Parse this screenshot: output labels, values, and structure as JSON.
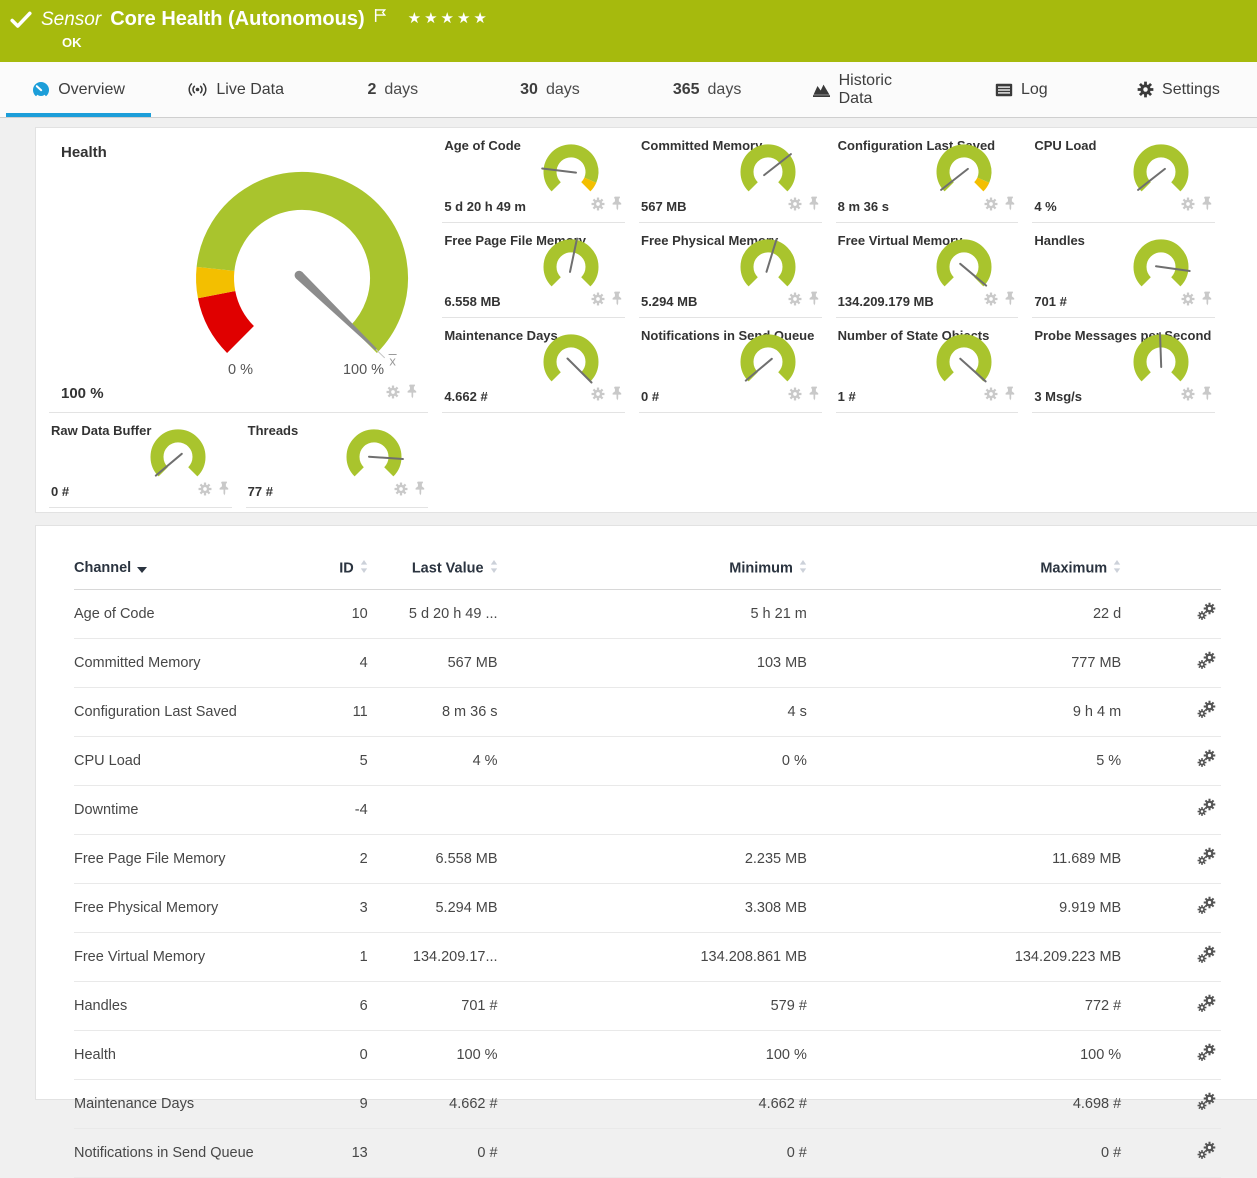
{
  "header": {
    "kind_label": "Sensor",
    "title": "Core Health (Autonomous)",
    "status": "OK",
    "rating_stars": "★★★★★"
  },
  "tabs": [
    {
      "label": "Overview",
      "icon": "gauge-icon",
      "active": true
    },
    {
      "label": "Live Data",
      "icon": "live-icon"
    },
    {
      "num": "2",
      "word": "days"
    },
    {
      "num": "30",
      "word": "days"
    },
    {
      "num": "365",
      "word": "days"
    },
    {
      "label": "Historic Data",
      "icon": "historic-icon"
    },
    {
      "label": "Log",
      "icon": "log-icon"
    },
    {
      "label": "Settings",
      "icon": "settings-icon"
    }
  ],
  "colors": {
    "brand_green": "#a6ba0d",
    "tab_blue": "#1c9ed9",
    "green": "#a9c42d",
    "yellow": "#f3bf00",
    "red": "#e00000",
    "needle": "#6f6f6f",
    "big_needle": "#8c8c8c"
  },
  "gauges": [
    {
      "title": "Health",
      "value": "100 %",
      "min_label": "0 %",
      "max_label": "100 %",
      "avg_marker": "x̄",
      "size": "big",
      "needle_deg": 44,
      "segments": [
        [
          135,
          169,
          "red"
        ],
        [
          169,
          186,
          "yellow"
        ],
        [
          186,
          405,
          "green"
        ]
      ]
    },
    {
      "title": "Age of Code",
      "value": "5 d 20 h 49 m",
      "needle_deg": 187,
      "segments": [
        [
          135,
          383,
          "green"
        ],
        [
          383,
          405,
          "yellow"
        ]
      ]
    },
    {
      "title": "Committed Memory",
      "value": "567 MB",
      "needle_deg": 322
    },
    {
      "title": "Configuration Last Saved",
      "value": "8 m 36 s",
      "needle_deg": 142,
      "segments": [
        [
          135,
          383,
          "green"
        ],
        [
          383,
          405,
          "yellow"
        ]
      ]
    },
    {
      "title": "CPU Load",
      "value": "4 %",
      "needle_deg": 142
    },
    {
      "title": "Free Page File Memory",
      "value": "6.558 MB",
      "needle_deg": 282
    },
    {
      "title": "Free Physical Memory",
      "value": "5.294 MB",
      "needle_deg": 287
    },
    {
      "title": "Free Virtual Memory",
      "value": "134.209.179 MB",
      "needle_deg": 40
    },
    {
      "title": "Handles",
      "value": "701 #",
      "needle_deg": 8
    },
    {
      "title": "Maintenance Days",
      "value": "4.662 #",
      "needle_deg": 45
    },
    {
      "title": "Notifications in Send Queue",
      "value": "0 #",
      "needle_deg": 140
    },
    {
      "title": "Number of State Objects",
      "value": "1 #",
      "needle_deg": 42
    },
    {
      "title": "Probe Messages per Second",
      "value": "3 Msg/s",
      "needle_deg": 268
    },
    {
      "title": "Raw Data Buffer",
      "value": "0 #",
      "needle_deg": 140
    },
    {
      "title": "Threads",
      "value": "77 #",
      "needle_deg": 4
    }
  ],
  "table": {
    "columns": [
      {
        "label": "Channel",
        "sort": "desc"
      },
      {
        "label": "ID"
      },
      {
        "label": "Last Value"
      },
      {
        "label": "Minimum"
      },
      {
        "label": "Maximum"
      }
    ],
    "rows": [
      {
        "channel": "Age of Code",
        "id": "10",
        "last_value": "5 d 20 h 49 ...",
        "minimum": "5 h 21 m",
        "maximum": "22 d"
      },
      {
        "channel": "Committed Memory",
        "id": "4",
        "last_value": "567 MB",
        "minimum": "103 MB",
        "maximum": "777 MB"
      },
      {
        "channel": "Configuration Last Saved",
        "id": "11",
        "last_value": "8 m 36 s",
        "minimum": "4 s",
        "maximum": "9 h 4 m"
      },
      {
        "channel": "CPU Load",
        "id": "5",
        "last_value": "4 %",
        "minimum": "0 %",
        "maximum": "5 %"
      },
      {
        "channel": "Downtime",
        "id": "-4",
        "last_value": "",
        "minimum": "",
        "maximum": ""
      },
      {
        "channel": "Free Page File Memory",
        "id": "2",
        "last_value": "6.558 MB",
        "minimum": "2.235 MB",
        "maximum": "11.689 MB"
      },
      {
        "channel": "Free Physical Memory",
        "id": "3",
        "last_value": "5.294 MB",
        "minimum": "3.308 MB",
        "maximum": "9.919 MB"
      },
      {
        "channel": "Free Virtual Memory",
        "id": "1",
        "last_value": "134.209.17...",
        "minimum": "134.208.861 MB",
        "maximum": "134.209.223 MB"
      },
      {
        "channel": "Handles",
        "id": "6",
        "last_value": "701 #",
        "minimum": "579 #",
        "maximum": "772 #"
      },
      {
        "channel": "Health",
        "id": "0",
        "last_value": "100 %",
        "minimum": "100 %",
        "maximum": "100 %"
      },
      {
        "channel": "Maintenance Days",
        "id": "9",
        "last_value": "4.662 #",
        "minimum": "4.662 #",
        "maximum": "4.698 #"
      },
      {
        "channel": "Notifications in Send Queue",
        "id": "13",
        "last_value": "0 #",
        "minimum": "0 #",
        "maximum": "0 #"
      }
    ]
  }
}
